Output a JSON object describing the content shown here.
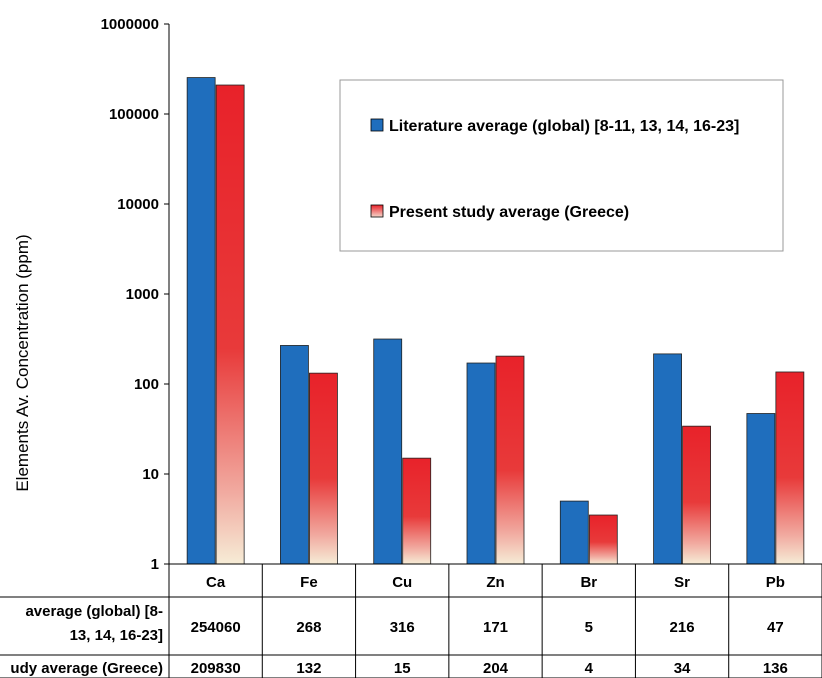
{
  "chart_data": {
    "type": "bar",
    "title": "",
    "xlabel": "",
    "ylabel": "Elements Av. Concentration (ppm)",
    "yscale": "log",
    "ylim": [
      1,
      1000000
    ],
    "yticks": [
      "1",
      "10",
      "100",
      "1000",
      "10000",
      "100000",
      "1000000"
    ],
    "grid": false,
    "legend_position": "top-right",
    "categories": [
      "Ca",
      "Fe",
      "Cu",
      "Zn",
      "Br",
      "Sr",
      "Pb"
    ],
    "series": [
      {
        "name": "Literature average (global) [8-11, 13, 14, 16-23]",
        "color": "#1f6ebd",
        "values": [
          254060,
          268,
          316,
          171,
          5,
          216,
          47
        ],
        "table_labels": [
          "254060",
          "268",
          "316",
          "171",
          "5",
          "216",
          "47"
        ]
      },
      {
        "name": "Present study average (Greece)",
        "color": "#e8222a",
        "values": [
          209830,
          132,
          15,
          204,
          3.5,
          34,
          136
        ],
        "table_labels": [
          "209830",
          "132",
          "15",
          "204",
          "4",
          "34",
          "136"
        ]
      }
    ],
    "table": {
      "row_labels": [
        "average (global) [8-",
        "13, 14, 16-23]",
        "udy average (Greece)"
      ]
    }
  }
}
